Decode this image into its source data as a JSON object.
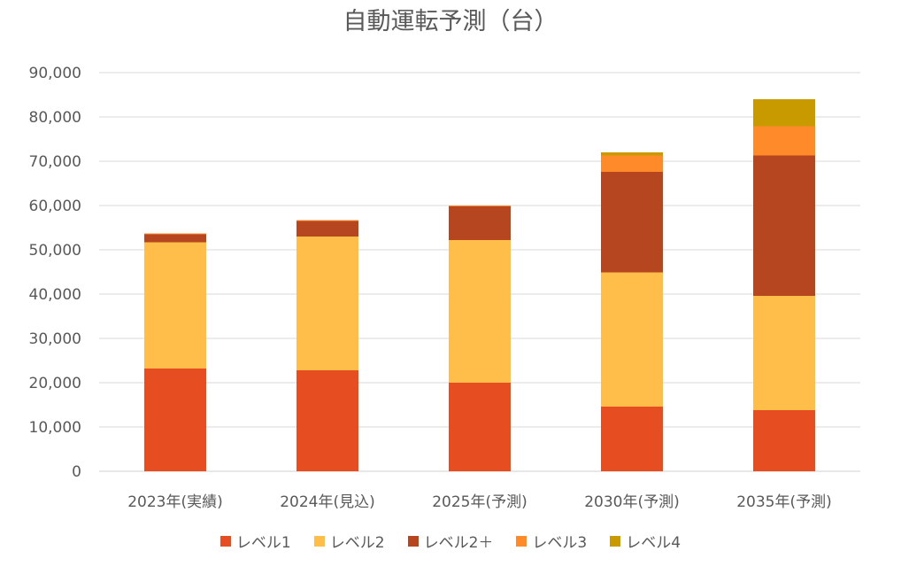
{
  "chart_data": {
    "type": "bar",
    "stacked": true,
    "title": "自動運転予測（台）",
    "xlabel": "",
    "ylabel": "",
    "ylim": [
      0,
      90000
    ],
    "yticks": [
      "0",
      "10,000",
      "20,000",
      "30,000",
      "40,000",
      "50,000",
      "60,000",
      "70,000",
      "80,000",
      "90,000"
    ],
    "grid": true,
    "legend_position": "bottom",
    "categories": [
      "2023年(実績)",
      "2024年(見込)",
      "2025年(予測)",
      "2030年(予測)",
      "2035年(予測)"
    ],
    "series": [
      {
        "name": "レベル1",
        "color": "#E64E22",
        "values": [
          23200,
          22800,
          20000,
          14600,
          13800
        ]
      },
      {
        "name": "レベル2",
        "color": "#FFBD4A",
        "values": [
          28500,
          30200,
          32200,
          30300,
          25800
        ]
      },
      {
        "name": "レベル2＋",
        "color": "#B5461F",
        "values": [
          1800,
          3500,
          7600,
          22700,
          31700
        ]
      },
      {
        "name": "レベル3",
        "color": "#FF8A2A",
        "values": [
          200,
          200,
          200,
          3700,
          6600
        ]
      },
      {
        "name": "レベル4",
        "color": "#C99A00",
        "values": [
          0,
          0,
          0,
          700,
          6100
        ]
      }
    ]
  }
}
